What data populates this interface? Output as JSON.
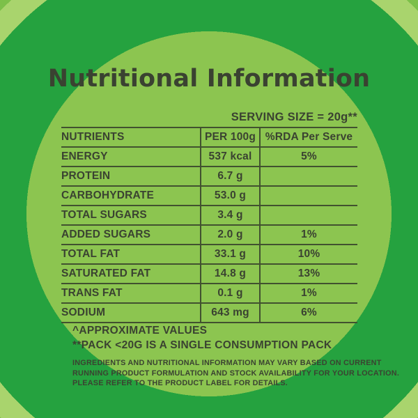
{
  "title": "Nutritional Information",
  "serving_size": "SERVING SIZE = 20g**",
  "table": {
    "headers": [
      "NUTRIENTS",
      "PER 100g",
      "%RDA Per Serve"
    ],
    "rows": [
      {
        "nutrient": "ENERGY",
        "per_100g": "537 kcal",
        "rda": "5%",
        "indent": 0
      },
      {
        "nutrient": "PROTEIN",
        "per_100g": "6.7 g",
        "rda": "",
        "indent": 0
      },
      {
        "nutrient": "CARBOHYDRATE",
        "per_100g": "53.0 g",
        "rda": "",
        "indent": 0
      },
      {
        "nutrient": "TOTAL SUGARS",
        "per_100g": "3.4 g",
        "rda": "",
        "indent": 1
      },
      {
        "nutrient": "ADDED SUGARS",
        "per_100g": "2.0 g",
        "rda": "1%",
        "indent": 2
      },
      {
        "nutrient": "TOTAL FAT",
        "per_100g": "33.1 g",
        "rda": "10%",
        "indent": 0
      },
      {
        "nutrient": "SATURATED FAT",
        "per_100g": "14.8 g",
        "rda": "13%",
        "indent": 1
      },
      {
        "nutrient": "TRANS FAT",
        "per_100g": "0.1 g",
        "rda": "1%",
        "indent": 1
      },
      {
        "nutrient": "SODIUM",
        "per_100g": "643 mg",
        "rda": "6%",
        "indent": 0
      }
    ]
  },
  "footnotes": [
    "^APPROXIMATE VALUES",
    "**PACK <20G IS A SINGLE CONSUMPTION PACK"
  ],
  "disclaimer_lines": [
    "INGREDIENTS AND NUTRITIONAL INFORMATION MAY VARY BASED ON CURRENT",
    "RUNNING PRODUCT FORMULATION AND STOCK AVAILABILITY FOR YOUR LOCATION.",
    "PLEASE REFER TO THE PRODUCT LABEL FOR DETAILS."
  ],
  "colors": {
    "inner_circle": "#8cc550",
    "dark_ring": "#25a23f",
    "light_ring": "#a9d46d",
    "outer_background": "#7cc049",
    "text": "#3a4231",
    "line": "#41512f"
  }
}
